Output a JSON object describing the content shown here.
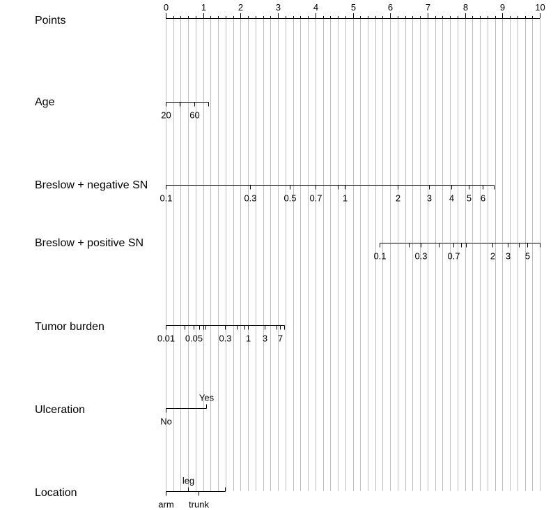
{
  "chart_data": {
    "type": "nomogram",
    "points_scale": {
      "label": "Points",
      "min": 0,
      "max": 10,
      "major_ticks": [
        0,
        1,
        2,
        3,
        4,
        5,
        6,
        7,
        8,
        9,
        10
      ],
      "minor_step": 0.2
    },
    "variables": [
      {
        "name": "Age",
        "ticks": [
          {
            "label": "20",
            "points": 0
          },
          {
            "label": "",
            "points": 0.38
          },
          {
            "label": "60",
            "points": 0.76
          },
          {
            "label": "",
            "points": 1.14
          }
        ]
      },
      {
        "name": "Breslow + negative SN",
        "ticks": [
          {
            "label": "0.1",
            "points": 0
          },
          {
            "label": "0.3",
            "points": 2.26
          },
          {
            "label": "0.5",
            "points": 3.31
          },
          {
            "label": "0.7",
            "points": 4.01
          },
          {
            "label": "",
            "points": 4.6
          },
          {
            "label": "1",
            "points": 4.78
          },
          {
            "label": "2",
            "points": 6.2
          },
          {
            "label": "3",
            "points": 7.04
          },
          {
            "label": "4",
            "points": 7.63
          },
          {
            "label": "5",
            "points": 8.1
          },
          {
            "label": "6",
            "points": 8.47
          },
          {
            "label": "",
            "points": 8.78
          }
        ]
      },
      {
        "name": "Breslow + positive SN",
        "ticks": [
          {
            "label": "0.1",
            "points": 5.72
          },
          {
            "label": "",
            "points": 6.5
          },
          {
            "label": "0.3",
            "points": 6.82
          },
          {
            "label": "",
            "points": 7.3
          },
          {
            "label": "0.7",
            "points": 7.7
          },
          {
            "label": "",
            "points": 7.9
          },
          {
            "label": "",
            "points": 8.02
          },
          {
            "label": "2",
            "points": 8.73
          },
          {
            "label": "3",
            "points": 9.15
          },
          {
            "label": "",
            "points": 9.44
          },
          {
            "label": "5",
            "points": 9.67
          },
          {
            "label": "",
            "points": 10
          }
        ]
      },
      {
        "name": "Tumor burden",
        "ticks": [
          {
            "label": "0.01",
            "points": 0
          },
          {
            "label": "",
            "points": 0.5
          },
          {
            "label": "0.05",
            "points": 0.75
          },
          {
            "label": "",
            "points": 0.9
          },
          {
            "label": "",
            "points": 1.0
          },
          {
            "label": "",
            "points": 1.06
          },
          {
            "label": "0.3",
            "points": 1.58
          },
          {
            "label": "",
            "points": 1.9
          },
          {
            "label": "",
            "points": 2.1
          },
          {
            "label": "1",
            "points": 2.2
          },
          {
            "label": "3",
            "points": 2.65
          },
          {
            "label": "",
            "points": 2.97
          },
          {
            "label": "7",
            "points": 3.06
          },
          {
            "label": "",
            "points": 3.17
          }
        ]
      },
      {
        "name": "Ulceration",
        "ticks": [
          {
            "label": "No",
            "points": 0,
            "position": "below"
          },
          {
            "label": "Yes",
            "points": 1.08,
            "position": "above"
          }
        ]
      },
      {
        "name": "Location",
        "ticks": [
          {
            "label": "arm",
            "points": 0,
            "position": "below"
          },
          {
            "label": "leg",
            "points": 0.6,
            "position": "above"
          },
          {
            "label": "trunk",
            "points": 0.88,
            "position": "below"
          },
          {
            "label": "",
            "points": 1.58,
            "position": "above"
          }
        ]
      }
    ]
  }
}
